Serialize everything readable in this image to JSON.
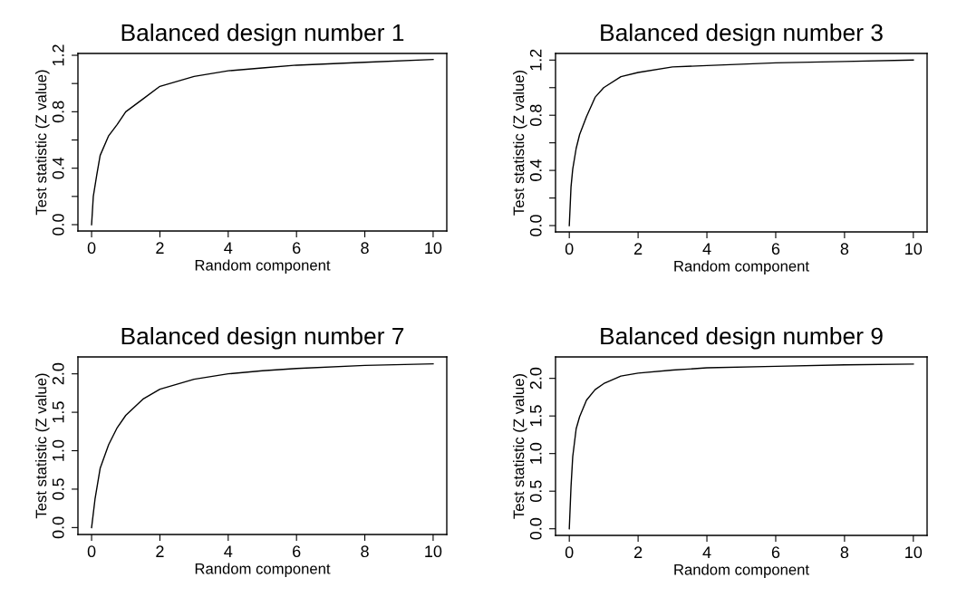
{
  "chart_data": [
    {
      "type": "line",
      "title": "Balanced design number 1",
      "xlabel": "Random component",
      "ylabel": "Test statistic (Z value)",
      "grid": false,
      "legend": false,
      "x": [
        0,
        0.05,
        0.15,
        0.25,
        0.5,
        0.75,
        1,
        1.5,
        2,
        3,
        4,
        5,
        6,
        8,
        10
      ],
      "series": [
        {
          "color": "#000000",
          "values": [
            0,
            0.2,
            0.35,
            0.49,
            0.63,
            0.71,
            0.8,
            0.89,
            0.98,
            1.05,
            1.09,
            1.11,
            1.13,
            1.15,
            1.17
          ]
        }
      ],
      "xlim": [
        -0.4,
        10.4
      ],
      "xticks": [
        0,
        2,
        4,
        6,
        8,
        10
      ],
      "ylim": [
        -0.045,
        1.213
      ],
      "yticks": [
        {
          "value": 0,
          "label": "0.0"
        },
        {
          "value": 0.2,
          "label": null
        },
        {
          "value": 0.4,
          "label": "0.4"
        },
        {
          "value": 0.6,
          "label": null
        },
        {
          "value": 0.8,
          "label": "0.8"
        },
        {
          "value": 1.0,
          "label": null
        },
        {
          "value": 1.2,
          "label": "1.2"
        }
      ]
    },
    {
      "type": "line",
      "title": "Balanced design number 3",
      "xlabel": "Random component",
      "ylabel": "Test statistic (Z value)",
      "grid": false,
      "legend": false,
      "x": [
        0,
        0.05,
        0.1,
        0.2,
        0.3,
        0.5,
        0.75,
        1,
        1.5,
        2,
        3,
        4,
        6,
        8,
        10
      ],
      "series": [
        {
          "color": "#000000",
          "values": [
            0,
            0.28,
            0.41,
            0.56,
            0.66,
            0.79,
            0.93,
            1.0,
            1.08,
            1.11,
            1.15,
            1.16,
            1.18,
            1.19,
            1.2
          ]
        }
      ],
      "xlim": [
        -0.4,
        10.4
      ],
      "xticks": [
        0,
        2,
        4,
        6,
        8,
        10
      ],
      "ylim": [
        -0.046,
        1.248
      ],
      "yticks": [
        {
          "value": 0,
          "label": "0.0"
        },
        {
          "value": 0.2,
          "label": null
        },
        {
          "value": 0.4,
          "label": "0.4"
        },
        {
          "value": 0.6,
          "label": null
        },
        {
          "value": 0.8,
          "label": "0.8"
        },
        {
          "value": 1.0,
          "label": null
        },
        {
          "value": 1.2,
          "label": "1.2"
        }
      ]
    },
    {
      "type": "line",
      "title": "Balanced design number 7",
      "xlabel": "Random component",
      "ylabel": "Test statistic (Z value)",
      "grid": false,
      "legend": false,
      "x": [
        0,
        0.1,
        0.25,
        0.5,
        0.75,
        1,
        1.5,
        2,
        3,
        4,
        5,
        6,
        8,
        10
      ],
      "series": [
        {
          "color": "#000000",
          "values": [
            0,
            0.37,
            0.77,
            1.08,
            1.3,
            1.46,
            1.67,
            1.8,
            1.93,
            2.0,
            2.04,
            2.07,
            2.11,
            2.13
          ]
        }
      ],
      "xlim": [
        -0.4,
        10.4
      ],
      "xticks": [
        0,
        2,
        4,
        6,
        8,
        10
      ],
      "ylim": [
        -0.09,
        2.22
      ],
      "yticks": [
        {
          "value": 0,
          "label": "0.0"
        },
        {
          "value": 0.5,
          "label": "0.5"
        },
        {
          "value": 1.0,
          "label": "1.0"
        },
        {
          "value": 1.5,
          "label": "1.5"
        },
        {
          "value": 2.0,
          "label": "2.0"
        }
      ]
    },
    {
      "type": "line",
      "title": "Balanced design number 9",
      "xlabel": "Random component",
      "ylabel": "Test statistic (Z value)",
      "grid": false,
      "legend": false,
      "x": [
        0,
        0.05,
        0.1,
        0.2,
        0.3,
        0.5,
        0.75,
        1,
        1.5,
        2,
        3,
        4,
        6,
        8,
        10
      ],
      "series": [
        {
          "color": "#000000",
          "values": [
            0,
            0.56,
            0.96,
            1.33,
            1.49,
            1.71,
            1.85,
            1.93,
            2.03,
            2.07,
            2.11,
            2.14,
            2.16,
            2.18,
            2.19
          ]
        }
      ],
      "xlim": [
        -0.4,
        10.4
      ],
      "xticks": [
        0,
        2,
        4,
        6,
        8,
        10
      ],
      "ylim": [
        -0.088,
        2.285
      ],
      "yticks": [
        {
          "value": 0,
          "label": "0.0"
        },
        {
          "value": 0.5,
          "label": "0.5"
        },
        {
          "value": 1.0,
          "label": "1.0"
        },
        {
          "value": 1.5,
          "label": "1.5"
        },
        {
          "value": 2.0,
          "label": "2.0"
        }
      ]
    }
  ]
}
